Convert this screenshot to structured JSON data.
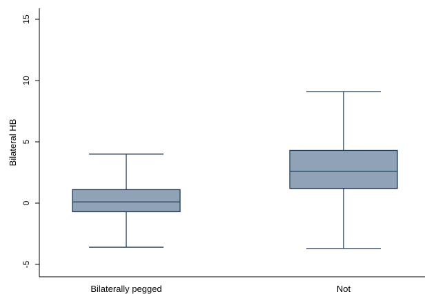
{
  "chart_data": {
    "type": "box",
    "title": "",
    "xlabel": "",
    "ylabel": "Bilateral HB",
    "ylim": [
      -6,
      16
    ],
    "yticks": [
      -5,
      0,
      5,
      10,
      15
    ],
    "ytick_labels": [
      "-5",
      "0",
      "5",
      "10",
      "15"
    ],
    "grid": false,
    "categories": [
      "Bilaterally pegged",
      "Not"
    ],
    "boxes": [
      {
        "category": "Bilaterally pegged",
        "whisker_low": -3.6,
        "q1": -0.7,
        "median": 0.1,
        "q3": 1.1,
        "whisker_high": 4.0
      },
      {
        "category": "Not",
        "whisker_low": -3.7,
        "q1": 1.2,
        "median": 2.6,
        "q3": 4.3,
        "whisker_high": 9.1
      }
    ],
    "colors": {
      "box_fill": "#8fa2b6",
      "box_stroke": "#1d3c5c",
      "axis": "#000000"
    }
  }
}
